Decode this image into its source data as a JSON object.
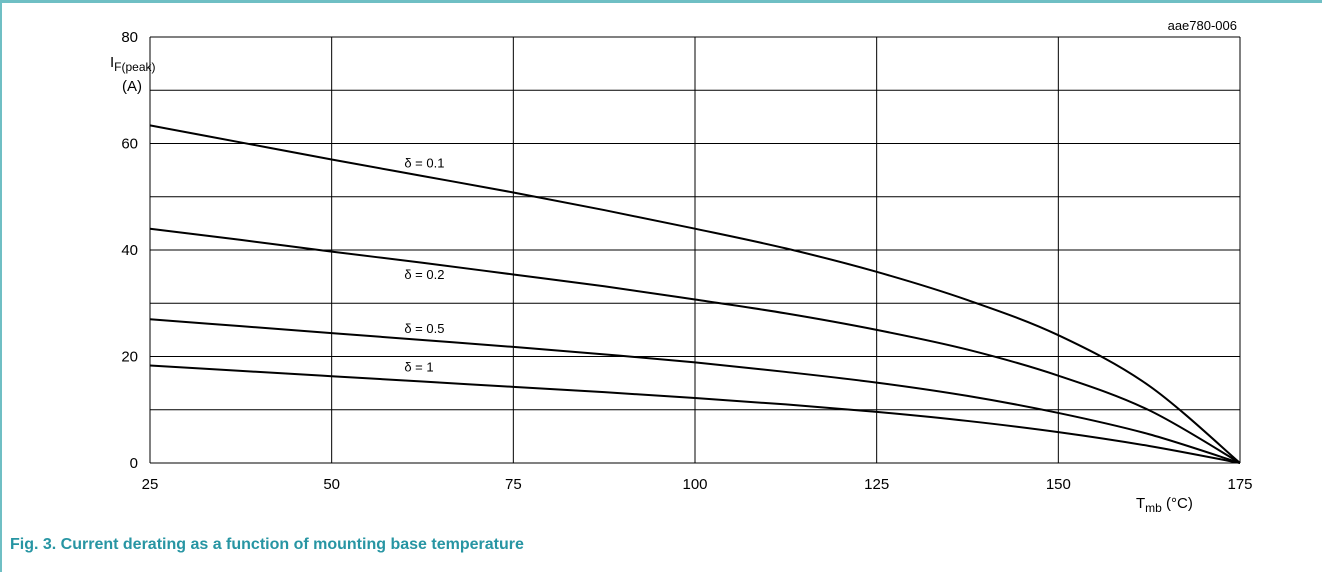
{
  "chart_data": {
    "type": "line",
    "title": "",
    "code": "aae780-006",
    "ylabel": {
      "main": "I",
      "sub": "F(peak)",
      "unit": "(A)"
    },
    "xlabel": {
      "main": "T",
      "sub": "mb",
      "unit": " (°C)"
    },
    "xlim": [
      25,
      175
    ],
    "ylim": [
      0,
      80
    ],
    "x_ticks": [
      25,
      50,
      75,
      100,
      125,
      150,
      175
    ],
    "y_ticks": [
      0,
      20,
      40,
      60,
      80
    ],
    "x_grid": [
      25,
      50,
      75,
      100,
      125,
      150,
      175
    ],
    "y_grid": [
      0,
      10,
      20,
      30,
      40,
      50,
      60,
      70,
      80
    ],
    "grid": true,
    "series": [
      {
        "name": "δ = 0.1",
        "x": [
          25,
          37.5,
          50,
          62.5,
          75,
          87.5,
          100,
          112.5,
          125,
          137.5,
          150,
          162.5,
          175
        ],
        "y": [
          63.4,
          60.2,
          57,
          53.9,
          50.8,
          47.5,
          44,
          40.3,
          35.9,
          30.6,
          24,
          14.5,
          0
        ],
        "label_at": [
          60,
          55.5
        ]
      },
      {
        "name": "δ = 0.2",
        "x": [
          25,
          37.5,
          50,
          62.5,
          75,
          87.5,
          100,
          112.5,
          125,
          137.5,
          150,
          162.5,
          175
        ],
        "y": [
          44,
          41.9,
          39.7,
          37.6,
          35.4,
          33.2,
          30.7,
          28.1,
          25,
          21.3,
          16.4,
          9.9,
          0
        ],
        "label_at": [
          60,
          34.6
        ]
      },
      {
        "name": "δ = 0.5",
        "x": [
          25,
          37.5,
          50,
          62.5,
          75,
          87.5,
          100,
          112.5,
          125,
          137.5,
          150,
          162.5,
          175
        ],
        "y": [
          27,
          25.7,
          24.4,
          23.1,
          21.8,
          20.4,
          18.9,
          17.1,
          15.1,
          12.6,
          9.4,
          5.4,
          0
        ],
        "label_at": [
          60,
          24.4
        ]
      },
      {
        "name": "δ = 1",
        "x": [
          25,
          37.5,
          50,
          62.5,
          75,
          87.5,
          100,
          112.5,
          125,
          137.5,
          150,
          162.5,
          175
        ],
        "y": [
          18.3,
          17.3,
          16.3,
          15.3,
          14.3,
          13.3,
          12.2,
          11,
          9.6,
          7.9,
          5.8,
          3.2,
          0
        ],
        "label_at": [
          60,
          17.2
        ]
      }
    ]
  },
  "caption": "Fig. 3. Current derating as a function of mounting base temperature"
}
